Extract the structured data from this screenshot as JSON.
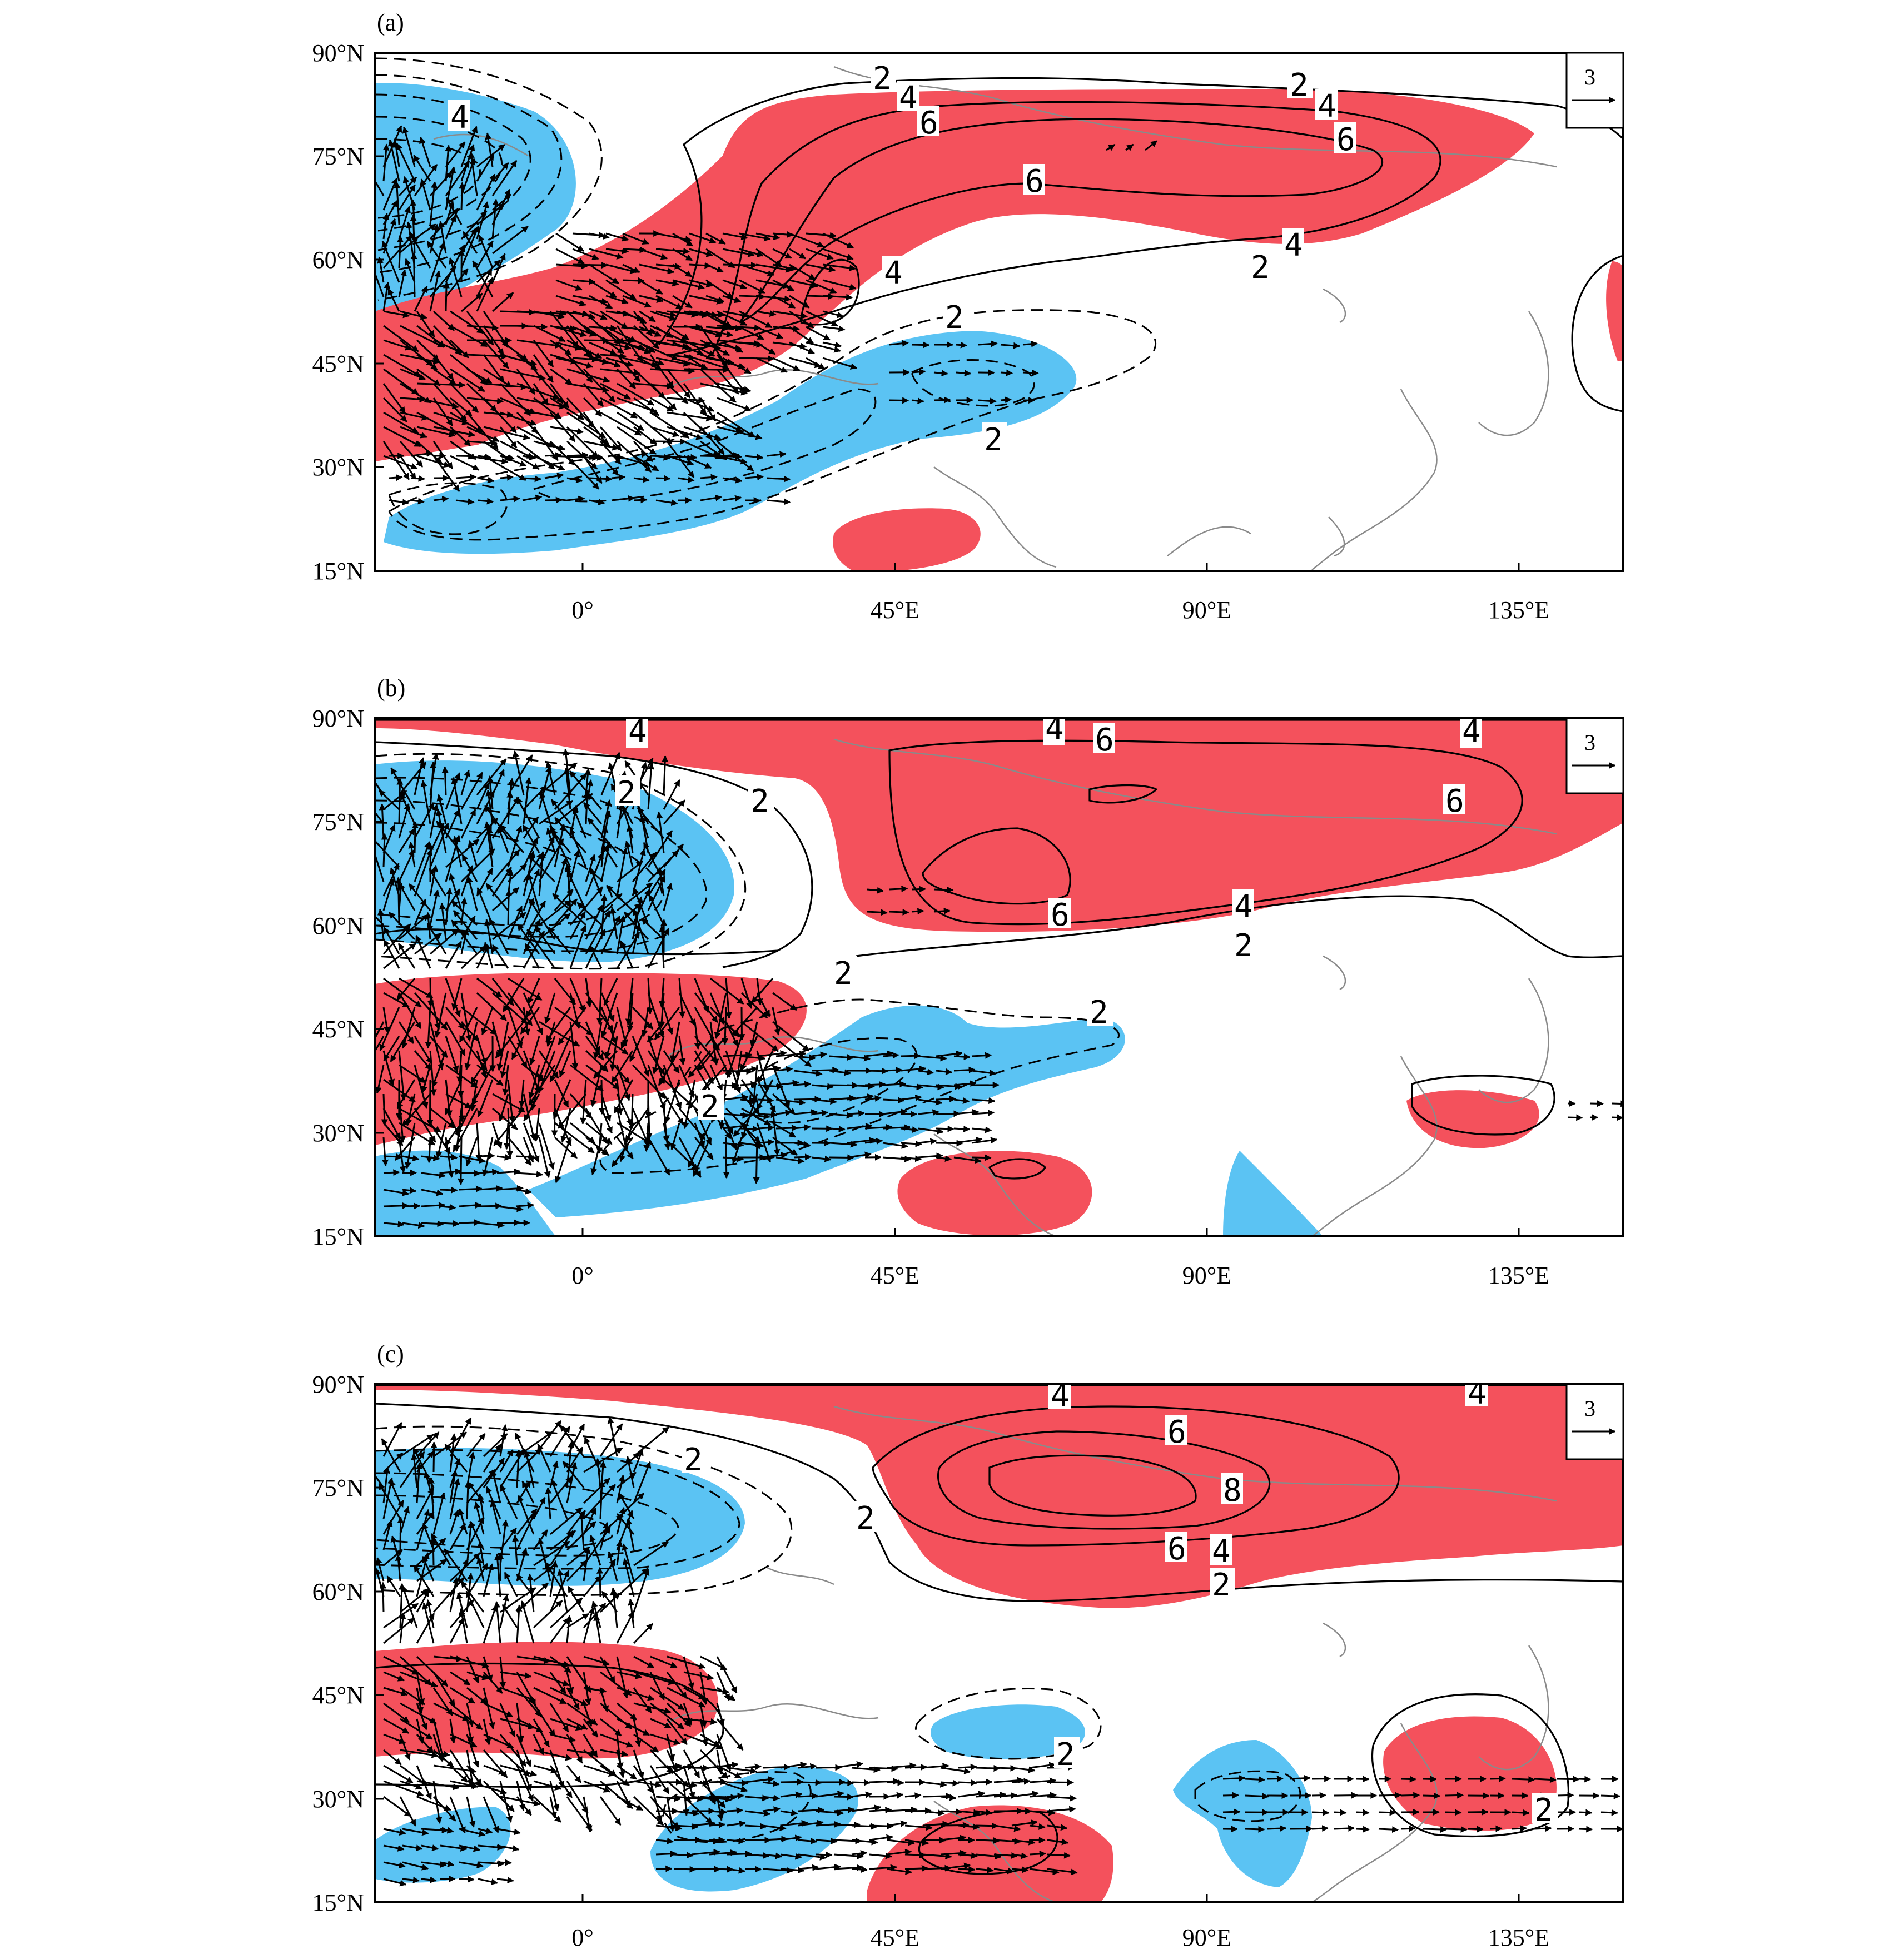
{
  "figure": {
    "colors": {
      "positive": "#f4515c",
      "negative": "#5bc3f3",
      "contour": "#000000",
      "coast": "#8a8a8a"
    },
    "lat_labels": [
      "90°N",
      "75°N",
      "60°N",
      "45°N",
      "30°N",
      "15°N"
    ],
    "lon_labels": [
      "0°",
      "45°E",
      "90°E",
      "135°E"
    ],
    "panels": [
      {
        "label": "(a)",
        "ref_vector": "3",
        "contour_labels": [
          "2",
          "4",
          "2",
          "4",
          "6",
          "6",
          "6",
          "4",
          "2",
          "4",
          "4",
          "2",
          "2"
        ],
        "shading_positive": [
          "north-atlantic-europe-siberia-band",
          "arabia-blob",
          "japan-east-edge"
        ],
        "shading_negative": [
          "north-atlantic-high-lat",
          "africa-mediterranean-band",
          "caspian-blob"
        ]
      },
      {
        "label": "(b)",
        "ref_vector": "3",
        "contour_labels": [
          "4",
          "4",
          "4",
          "6",
          "6",
          "6",
          "4",
          "2",
          "2",
          "2",
          "2",
          "2",
          "2"
        ],
        "shading_positive": [
          "arctic-band",
          "north-atlantic-mid-lat",
          "arabia-blob",
          "japan-blob"
        ],
        "shading_negative": [
          "north-atlantic-high-lat",
          "mediterranean-caspian-band",
          "bay-of-bengal-blob"
        ]
      },
      {
        "label": "(c)",
        "ref_vector": "3",
        "contour_labels": [
          "4",
          "4",
          "6",
          "8",
          "6",
          "4",
          "2",
          "2",
          "2",
          "2",
          "2"
        ],
        "shading_positive": [
          "arctic-band",
          "north-atlantic-mid-lat",
          "arabia-blob",
          "east-asia-blob"
        ],
        "shading_negative": [
          "north-atlantic-high-lat",
          "west-africa-blob",
          "mediterranean-blob",
          "caspian-blob",
          "bay-of-bengal-blob"
        ]
      }
    ]
  }
}
